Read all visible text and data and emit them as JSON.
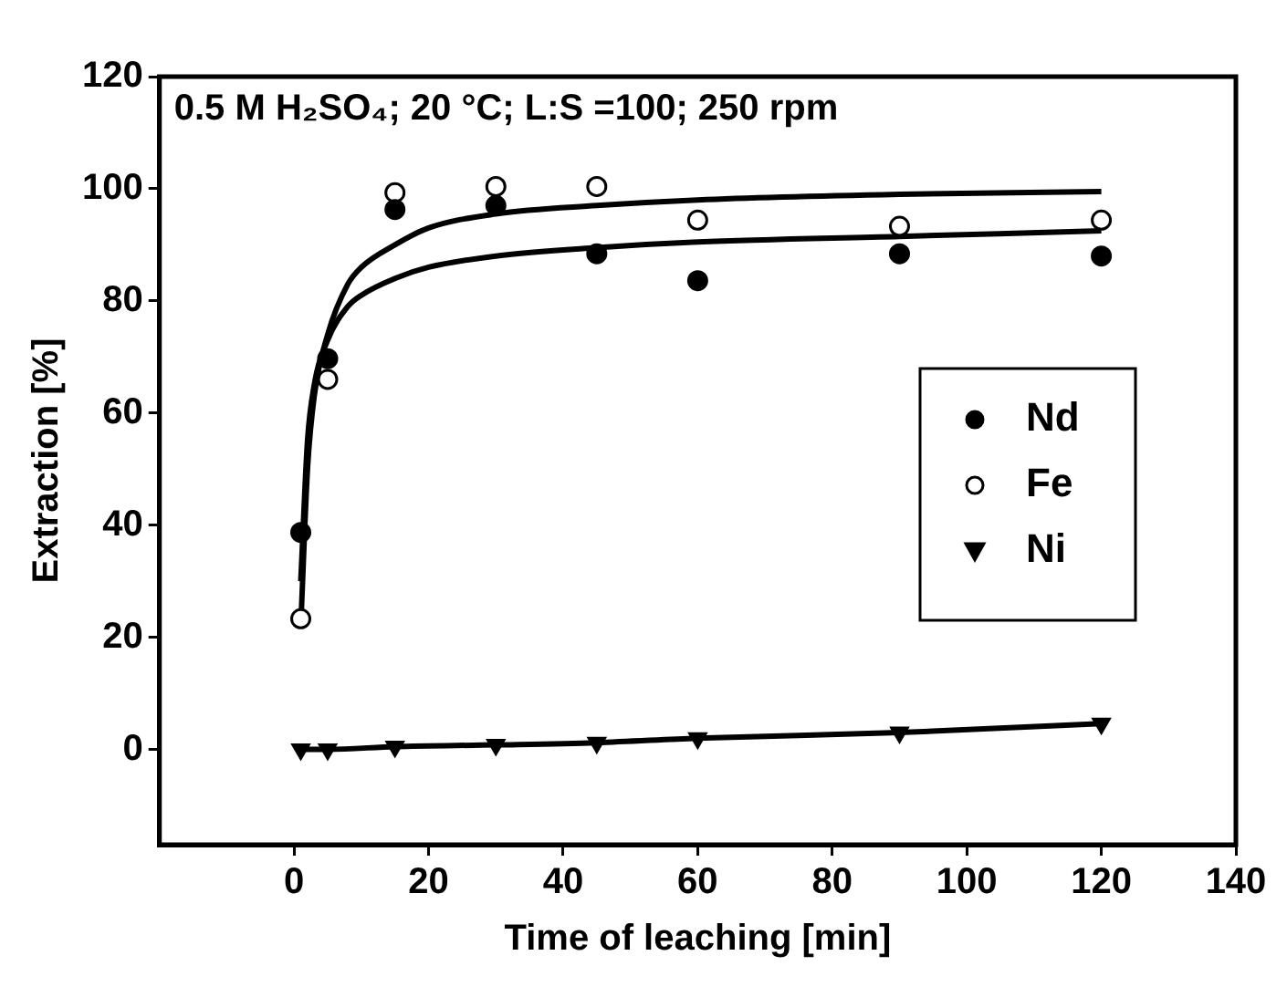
{
  "chart_data": {
    "type": "scatter",
    "xlabel": "Time of leaching [min]",
    "ylabel": "Extraction [%]",
    "annotations": [
      "0.5 M H₂SO₄; 20 °C; L:S =100; 250 rpm"
    ],
    "x": [
      1,
      5,
      15,
      30,
      45,
      60,
      90,
      120
    ],
    "series": [
      {
        "name": "Nd",
        "color": "#000000",
        "marker": "circle",
        "values": [
          38.7,
          69.7,
          96.3,
          97,
          88.4,
          83.6,
          88.4,
          88
        ]
      },
      {
        "name": "Fe",
        "color": "#ffffff",
        "marker": "circle",
        "values": [
          23.3,
          66,
          99.3,
          100.4,
          100.4,
          94.4,
          93.3,
          94.4
        ]
      },
      {
        "name": "Ni",
        "type": "line",
        "color": "#000000",
        "marker": "triangle",
        "values": [
          0,
          0,
          0.5,
          0.8,
          1.2,
          2,
          3,
          4.6
        ]
      },
      {
        "type": "line",
        "color": "#000000",
        "marker": "none",
        "x": [
          1,
          2,
          3,
          5,
          8,
          10,
          15,
          20,
          30,
          45,
          60,
          90,
          120
        ],
        "values": [
          22,
          50,
          63,
          74,
          83,
          86,
          90,
          93,
          95.5,
          97,
          98,
          99,
          99.5
        ]
      },
      {
        "type": "line",
        "color": "#000000",
        "marker": "none",
        "x": [
          1,
          2,
          3,
          5,
          8,
          10,
          15,
          20,
          30,
          45,
          60,
          90,
          120
        ],
        "values": [
          30,
          55,
          65,
          73,
          79,
          81,
          84,
          86,
          88,
          89.5,
          90.5,
          91.5,
          92.5
        ]
      }
    ],
    "xlim": [
      -20,
      140
    ],
    "xticks": [
      0,
      20,
      40,
      60,
      80,
      100,
      120,
      140
    ],
    "ylim": [
      -17,
      120
    ],
    "yticks": [
      0,
      20,
      40,
      60,
      80,
      100,
      120
    ],
    "legend": "right",
    "grid": false
  }
}
